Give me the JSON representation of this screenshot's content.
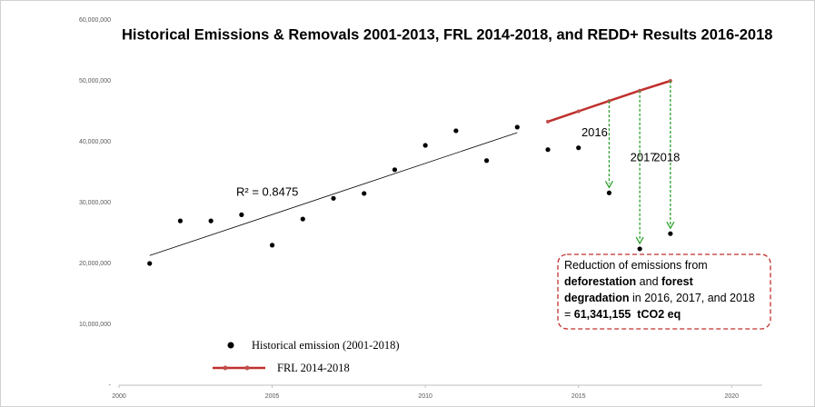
{
  "chart_data": {
    "type": "scatter",
    "title": "Historical Emissions & Removals 2001-2013, FRL 2014-2018, and REDD+ Results 2016-2018",
    "xlim": [
      2000,
      2021
    ],
    "xticks": [
      2000,
      2005,
      2010,
      2015,
      2020
    ],
    "ylim": [
      0,
      60000000
    ],
    "yticks": [
      {
        "value": 0,
        "label": "-"
      },
      {
        "value": 10000000,
        "label": "10,000,000"
      },
      {
        "value": 20000000,
        "label": "20,000,000"
      },
      {
        "value": 30000000,
        "label": "30,000,000"
      },
      {
        "value": 40000000,
        "label": "40,000,000"
      },
      {
        "value": 50000000,
        "label": "50,000,000"
      },
      {
        "value": 60000000,
        "label": "60,000,000"
      }
    ],
    "series": [
      {
        "name": "Historical emission (2001-2018)",
        "color": "#000000",
        "style": "points",
        "x": [
          2001,
          2002,
          2003,
          2004,
          2005,
          2006,
          2007,
          2008,
          2009,
          2010,
          2011,
          2012,
          2013,
          2014,
          2015,
          2016,
          2017,
          2018
        ],
        "values": [
          20000000,
          27000000,
          27000000,
          28000000,
          23000000,
          27300000,
          30700000,
          31500000,
          35400000,
          39400000,
          41800000,
          36900000,
          42400000,
          38700000,
          39000000,
          31600000,
          22400000,
          24900000
        ]
      },
      {
        "name": "FRL 2014-2018",
        "color": "#c0302c",
        "marker_color": "#c0504d",
        "style": "line",
        "x": [
          2014,
          2015,
          2016,
          2017,
          2018
        ],
        "values": [
          43300000,
          45000000,
          46700000,
          48400000,
          50000000
        ]
      }
    ],
    "trendline": {
      "x": [
        2001,
        2013
      ],
      "values": [
        21300000,
        41500000
      ],
      "label": "R² = 0.8475",
      "color": "#000000"
    },
    "annotations": [
      {
        "text": "2016",
        "x": 2016
      },
      {
        "text": "2017",
        "x": 2017
      },
      {
        "text": "2018",
        "x": 2018
      }
    ],
    "arrow_color": "#2ca02c",
    "box_color": "#c0302c",
    "box_text": [
      [
        {
          "text": "Reduction of emissions from",
          "bold": false
        }
      ],
      [
        {
          "text": "deforestation",
          "bold": true
        },
        {
          "text": " and ",
          "bold": false
        },
        {
          "text": "forest",
          "bold": true
        }
      ],
      [
        {
          "text": "degradation",
          "bold": true
        },
        {
          "text": " in 2016, 2017, and 2018",
          "bold": false
        }
      ],
      [
        {
          "text": "= ",
          "bold": false
        },
        {
          "text": "61,341,155  tCO2 eq",
          "bold": true
        }
      ]
    ]
  }
}
